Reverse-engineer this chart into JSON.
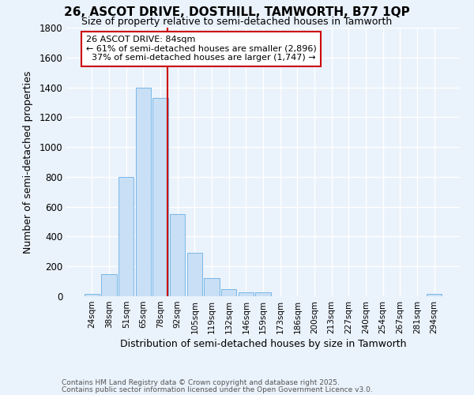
{
  "title1": "26, ASCOT DRIVE, DOSTHILL, TAMWORTH, B77 1QP",
  "title2": "Size of property relative to semi-detached houses in Tamworth",
  "xlabel": "Distribution of semi-detached houses by size in Tamworth",
  "ylabel": "Number of semi-detached properties",
  "categories": [
    "24sqm",
    "38sqm",
    "51sqm",
    "65sqm",
    "78sqm",
    "92sqm",
    "105sqm",
    "119sqm",
    "132sqm",
    "146sqm",
    "159sqm",
    "173sqm",
    "186sqm",
    "200sqm",
    "213sqm",
    "227sqm",
    "240sqm",
    "254sqm",
    "267sqm",
    "281sqm",
    "294sqm"
  ],
  "values": [
    15,
    150,
    800,
    1400,
    1330,
    550,
    290,
    120,
    50,
    25,
    25,
    0,
    0,
    0,
    0,
    0,
    0,
    0,
    0,
    0,
    15
  ],
  "bar_color": "#c8dff5",
  "bar_edge_color": "#7ab8e8",
  "vline_color": "#cc0000",
  "annotation_line1": "26 ASCOT DRIVE: 84sqm",
  "annotation_line2": "← 61% of semi-detached houses are smaller (2,896)",
  "annotation_line3": "  37% of semi-detached houses are larger (1,747) →",
  "annotation_box_color": "white",
  "annotation_box_edge": "#cc0000",
  "ylim": [
    0,
    1800
  ],
  "yticks": [
    0,
    200,
    400,
    600,
    800,
    1000,
    1200,
    1400,
    1600,
    1800
  ],
  "footnote1": "Contains HM Land Registry data © Crown copyright and database right 2025.",
  "footnote2": "Contains public sector information licensed under the Open Government Licence v3.0.",
  "bg_color": "#eaf2fb",
  "grid_color": "white",
  "title1_fontsize": 11,
  "title2_fontsize": 9
}
